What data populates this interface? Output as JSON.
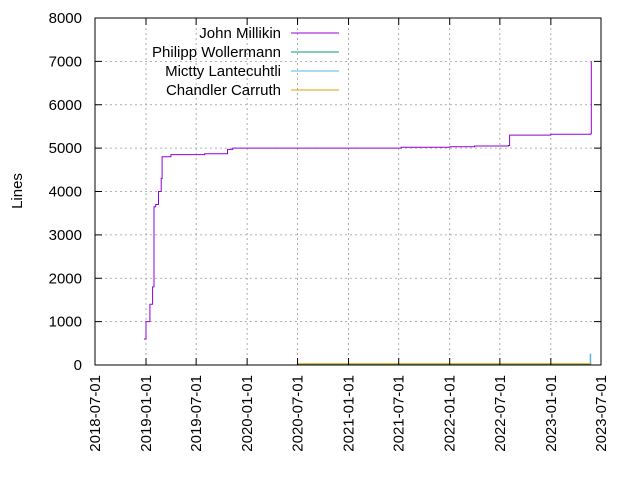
{
  "chart_data": {
    "type": "line",
    "ylabel": "Lines",
    "xlabel": "",
    "title": "",
    "ylim": [
      0,
      8000
    ],
    "xlim": [
      "2018-07-01",
      "2023-07-01"
    ],
    "y_ticks": [
      "0",
      "1000",
      "2000",
      "3000",
      "4000",
      "5000",
      "6000",
      "7000",
      "8000"
    ],
    "x_ticks": [
      "2018-07-01",
      "2019-01-01",
      "2019-07-01",
      "2020-01-01",
      "2020-07-01",
      "2021-01-01",
      "2021-07-01",
      "2022-01-01",
      "2022-07-01",
      "2023-01-01",
      "2023-07-01"
    ],
    "grid": true,
    "legend_position": "top-left",
    "step": true,
    "series": [
      {
        "name": "John Millikin",
        "color": "#9400d3",
        "points": [
          [
            "2018-12-25",
            600
          ],
          [
            "2019-01-01",
            1000
          ],
          [
            "2019-01-15",
            1400
          ],
          [
            "2019-01-25",
            1800
          ],
          [
            "2019-01-28",
            1800
          ],
          [
            "2019-01-30",
            3650
          ],
          [
            "2019-02-05",
            3700
          ],
          [
            "2019-02-15",
            4000
          ],
          [
            "2019-02-25",
            4300
          ],
          [
            "2019-02-28",
            4800
          ],
          [
            "2019-04-01",
            4850
          ],
          [
            "2019-06-01",
            4850
          ],
          [
            "2019-08-01",
            4870
          ],
          [
            "2019-10-20",
            4870
          ],
          [
            "2019-10-22",
            4970
          ],
          [
            "2019-11-10",
            5000
          ],
          [
            "2021-07-01",
            5000
          ],
          [
            "2021-07-10",
            5020
          ],
          [
            "2022-01-01",
            5030
          ],
          [
            "2022-04-01",
            5050
          ],
          [
            "2022-08-01",
            5060
          ],
          [
            "2022-08-05",
            5300
          ],
          [
            "2023-01-01",
            5320
          ],
          [
            "2023-05-25",
            5330
          ],
          [
            "2023-05-27",
            7000
          ]
        ]
      },
      {
        "name": "Philipp Wollermann",
        "color": "#009e73",
        "points": [
          [
            "2020-07-01",
            15
          ],
          [
            "2023-05-27",
            15
          ]
        ]
      },
      {
        "name": "Mictty Lantecuhtli",
        "color": "#56b4e9",
        "points": [
          [
            "2023-05-20",
            0
          ],
          [
            "2023-05-23",
            250
          ],
          [
            "2023-05-25",
            20
          ]
        ]
      },
      {
        "name": "Chandler Carruth",
        "color": "#e69f00",
        "points": [
          [
            "2020-07-01",
            30
          ],
          [
            "2023-05-27",
            30
          ]
        ]
      }
    ]
  }
}
